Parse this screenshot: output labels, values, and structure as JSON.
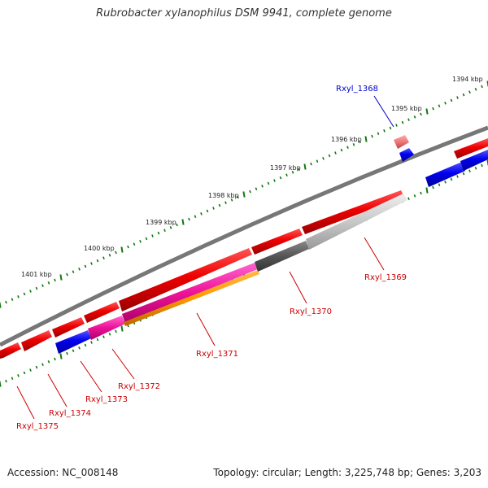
{
  "title": "Rubrobacter xylanophilus DSM 9941, complete genome",
  "footer": {
    "accession": "Accession: NC_008148",
    "summary": "Topology: circular; Length: 3,225,748 bp; Genes: 3,203"
  },
  "colors": {
    "forward_cds": "#ee0000",
    "reverse_cds": "#0000ee",
    "backbone": "#777777",
    "tick": "#117711",
    "label_red": "#cc0000",
    "label_blue": "#0000cc"
  },
  "ruler": {
    "labels": [
      "1394 kbp",
      "1395 kbp",
      "1396 kbp",
      "1397 kbp",
      "1398 kbp",
      "1399 kbp",
      "1400 kbp",
      "1401 kbp"
    ]
  },
  "genes": [
    {
      "id": "Rxyl_1368",
      "strand": "reverse"
    },
    {
      "id": "Rxyl_1369",
      "strand": "forward"
    },
    {
      "id": "Rxyl_1370",
      "strand": "forward"
    },
    {
      "id": "Rxyl_1371",
      "strand": "forward"
    },
    {
      "id": "Rxyl_1372",
      "strand": "forward"
    },
    {
      "id": "Rxyl_1373",
      "strand": "reverse"
    },
    {
      "id": "Rxyl_1374",
      "strand": "forward"
    },
    {
      "id": "Rxyl_1375",
      "strand": "forward"
    }
  ]
}
